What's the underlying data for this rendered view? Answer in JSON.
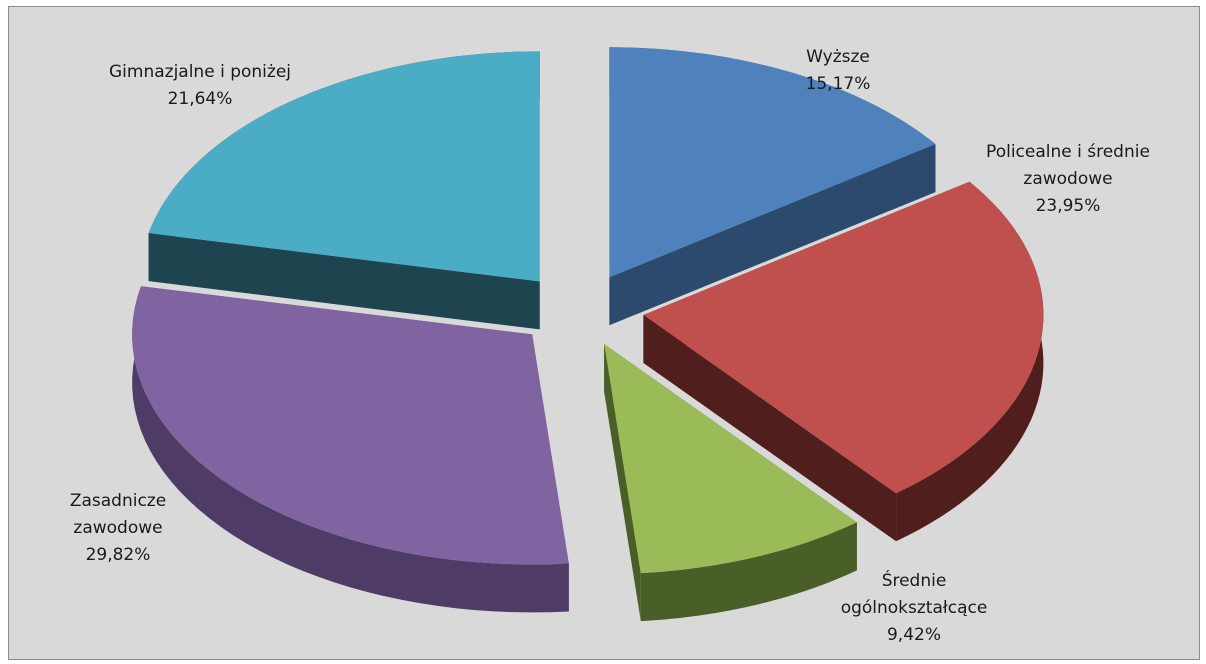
{
  "chart_data": {
    "type": "pie",
    "style": "3d-exploded",
    "start": "top",
    "direction": "clockwise",
    "slices": [
      {
        "name": "Wyższe",
        "value": 15.17,
        "label_lines": [
          "Wyższe",
          "15,17%"
        ],
        "color": "#4f81bd",
        "side_color": "#2c4a6e"
      },
      {
        "name": "Policealne i średnie zawodowe",
        "value": 23.95,
        "label_lines": [
          "Policealne i średnie",
          "zawodowe",
          "23,95%"
        ],
        "color": "#c0504d",
        "side_color": "#4f1e1d"
      },
      {
        "name": "Średnie ogólnokształcące",
        "value": 9.42,
        "label_lines": [
          "Średnie",
          "ogólnokształcące",
          "9,42%"
        ],
        "color": "#9bbb59",
        "side_color": "#4a5e28"
      },
      {
        "name": "Zasadnicze zawodowe",
        "value": 29.82,
        "label_lines": [
          "Zasadnicze",
          "zawodowe",
          "29,82%"
        ],
        "color": "#8064a2",
        "side_color": "#4e3b66"
      },
      {
        "name": "Gimnazjalne i poniżej",
        "value": 21.64,
        "label_lines": [
          "Gimnazjalne i poniżej",
          "21,64%"
        ],
        "color": "#4bacc6",
        "side_color": "#1e4450"
      }
    ]
  }
}
